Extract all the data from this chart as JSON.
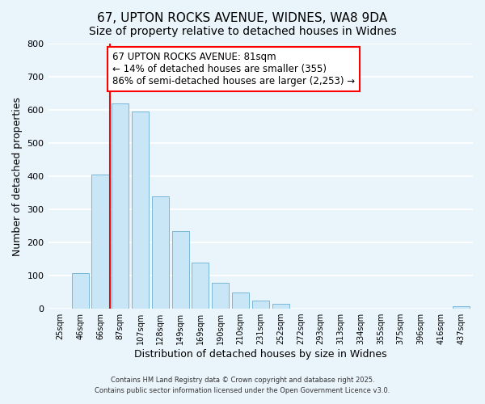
{
  "title": "67, UPTON ROCKS AVENUE, WIDNES, WA8 9DA",
  "subtitle": "Size of property relative to detached houses in Widnes",
  "xlabel": "Distribution of detached houses by size in Widnes",
  "ylabel": "Number of detached properties",
  "bar_labels": [
    "25sqm",
    "46sqm",
    "66sqm",
    "87sqm",
    "107sqm",
    "128sqm",
    "149sqm",
    "169sqm",
    "190sqm",
    "210sqm",
    "231sqm",
    "252sqm",
    "272sqm",
    "293sqm",
    "313sqm",
    "334sqm",
    "355sqm",
    "375sqm",
    "396sqm",
    "416sqm",
    "437sqm"
  ],
  "bar_values": [
    0,
    108,
    405,
    620,
    595,
    338,
    235,
    138,
    78,
    50,
    25,
    15,
    0,
    0,
    0,
    0,
    0,
    0,
    0,
    0,
    7
  ],
  "bar_color": "#c8e6f5",
  "bar_edge_color": "#7ab8d9",
  "vline_color": "red",
  "vline_position": 2.5,
  "annotation_title": "67 UPTON ROCKS AVENUE: 81sqm",
  "annotation_line1": "← 14% of detached houses are smaller (355)",
  "annotation_line2": "86% of semi-detached houses are larger (2,253) →",
  "annotation_box_color": "white",
  "annotation_box_edge_color": "red",
  "ylim": [
    0,
    800
  ],
  "yticks": [
    0,
    100,
    200,
    300,
    400,
    500,
    600,
    700,
    800
  ],
  "footnote1": "Contains HM Land Registry data © Crown copyright and database right 2025.",
  "footnote2": "Contains public sector information licensed under the Open Government Licence v3.0.",
  "bg_color": "#eaf4fb",
  "grid_color": "#d0e8f5",
  "title_fontsize": 11,
  "subtitle_fontsize": 10,
  "annotation_fontsize": 8.5,
  "axis_fontsize": 8,
  "tick_fontsize": 7
}
